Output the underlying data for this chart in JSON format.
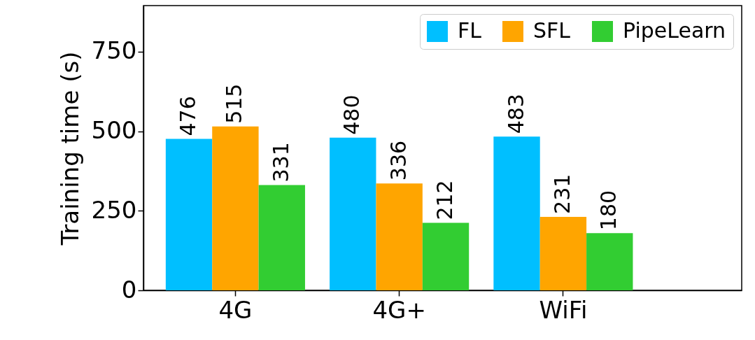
{
  "chart_data": {
    "type": "bar",
    "ylabel": "Training time (s)",
    "categories": [
      "4G",
      "4G+",
      "WiFi"
    ],
    "series": [
      {
        "name": "FL",
        "color": "#00bfff",
        "values": [
          476,
          480,
          483
        ]
      },
      {
        "name": "SFL",
        "color": "#ffa500",
        "values": [
          515,
          336,
          231
        ]
      },
      {
        "name": "PipeLearn",
        "color": "#32cd32",
        "values": [
          331,
          212,
          180
        ]
      }
    ],
    "ylim": [
      0,
      895
    ],
    "yticks": [
      0,
      250,
      500,
      750
    ],
    "data_labels": true,
    "legend": "top right",
    "grid": false
  }
}
